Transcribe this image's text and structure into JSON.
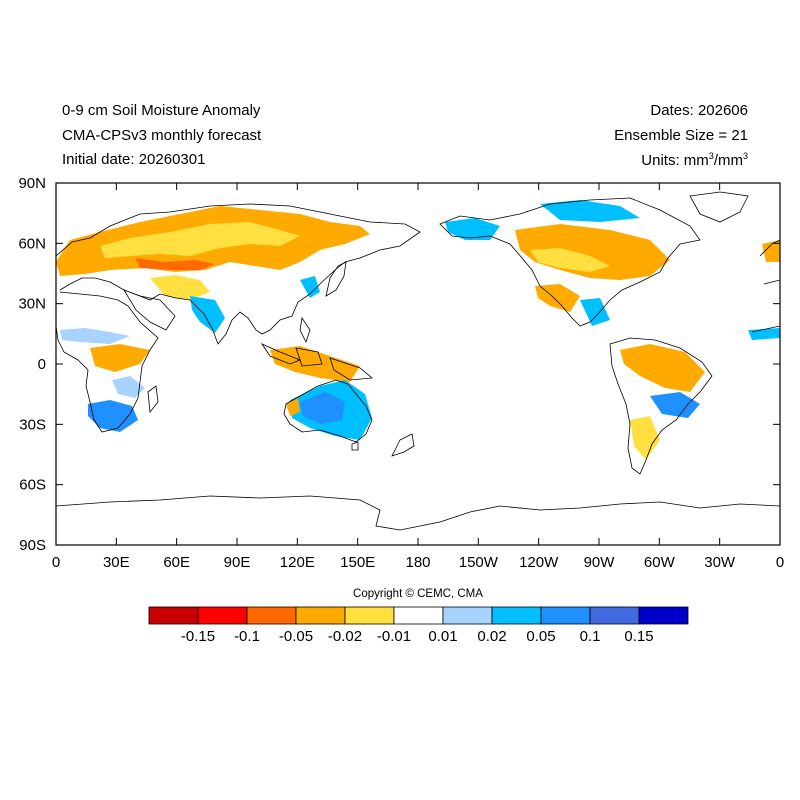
{
  "header": {
    "title_line1": "0-9 cm Soil Moisture Anomaly",
    "title_line2": "CMA-CPSv3 monthly forecast",
    "title_line3": "Initial date: 20260301",
    "dates": "Dates: 202606",
    "ensemble": "Ensemble Size = 21",
    "units_prefix": "Units: mm",
    "units_mid": "/mm",
    "units_sup": "3"
  },
  "map": {
    "projection": "cylindrical equidistant, centered 180",
    "lat_labels": [
      "90N",
      "60N",
      "30N",
      "0",
      "30S",
      "60S",
      "90S"
    ],
    "lon_labels": [
      "0",
      "30E",
      "60E",
      "90E",
      "120E",
      "150E",
      "180",
      "150W",
      "120W",
      "90W",
      "60W",
      "30W",
      "0"
    ]
  },
  "copyright": "Copyright © CEMC, CMA",
  "colorbar": {
    "colors": [
      "#c80000",
      "#ff0000",
      "#ff6a00",
      "#ffaa00",
      "#ffe040",
      "#ffffff",
      "#a8d2ff",
      "#00bfff",
      "#1e90ff",
      "#4169e1",
      "#0000c8"
    ],
    "labels": [
      "-0.15",
      "-0.1",
      "-0.05",
      "-0.02",
      "-0.01",
      "0.01",
      "0.02",
      "0.05",
      "0.1",
      "0.15"
    ]
  }
}
